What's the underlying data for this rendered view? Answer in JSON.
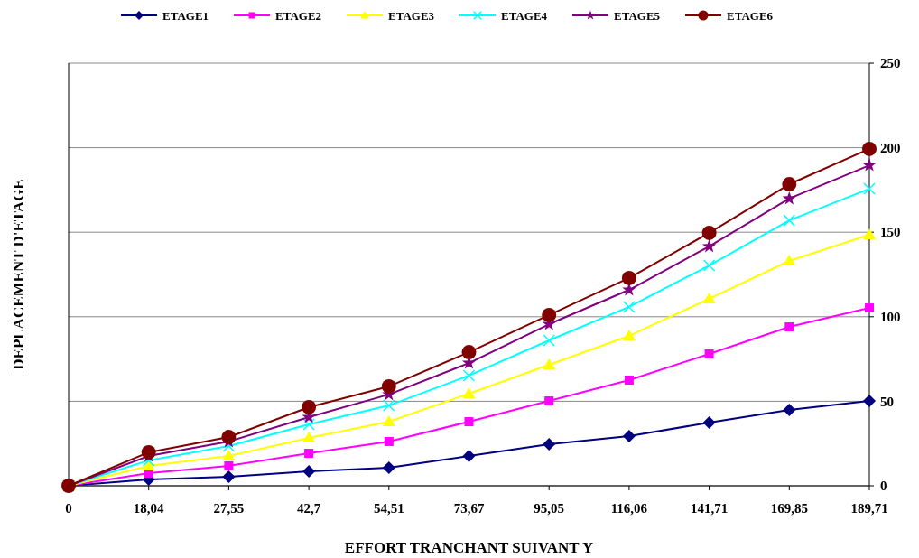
{
  "chart_data": {
    "type": "line",
    "xlabel": "EFFORT TRANCHANT SUIVANT Y",
    "ylabel": "DEPLACEMENT D'ETAGE",
    "categories": [
      "0",
      "18,04",
      "27,55",
      "42,7",
      "54,51",
      "73,67",
      "95,05",
      "116,06",
      "141,71",
      "169,85",
      "189,71"
    ],
    "ylim": [
      0,
      250
    ],
    "yticks": [
      0,
      50,
      100,
      150,
      200,
      250
    ],
    "grid": "y",
    "legend": "top",
    "series": [
      {
        "name": "ETAGE1",
        "color": "#000080",
        "marker": "diamond",
        "values": [
          0,
          3.7,
          5.3,
          8.5,
          10.7,
          17.6,
          24.6,
          29.4,
          37.4,
          44.9,
          50.2
        ]
      },
      {
        "name": "ETAGE2",
        "color": "#ff00ff",
        "marker": "square",
        "values": [
          0,
          7.5,
          11.8,
          19.2,
          26.2,
          37.9,
          50.2,
          62.5,
          78,
          94,
          105.2
        ]
      },
      {
        "name": "ETAGE3",
        "color": "#ffff00",
        "marker": "triangle",
        "values": [
          0,
          11.8,
          17.6,
          28.3,
          37.9,
          54.5,
          71.6,
          88.7,
          110.6,
          133,
          148.5
        ]
      },
      {
        "name": "ETAGE4",
        "color": "#00ffff",
        "marker": "cross",
        "values": [
          0,
          15,
          23.5,
          36.3,
          47.5,
          65.2,
          86,
          105.8,
          130.3,
          157,
          175.7
        ]
      },
      {
        "name": "ETAGE5",
        "color": "#800080",
        "marker": "star",
        "values": [
          0,
          17.6,
          26.2,
          40.6,
          54,
          72.6,
          95.6,
          115.9,
          141.6,
          169.9,
          189.6
        ]
      },
      {
        "name": "ETAGE6",
        "color": "#800000",
        "marker": "circle",
        "values": [
          0,
          19.8,
          28.8,
          46.5,
          58.8,
          79,
          101,
          122.9,
          149.6,
          178.4,
          199.3
        ]
      }
    ]
  }
}
